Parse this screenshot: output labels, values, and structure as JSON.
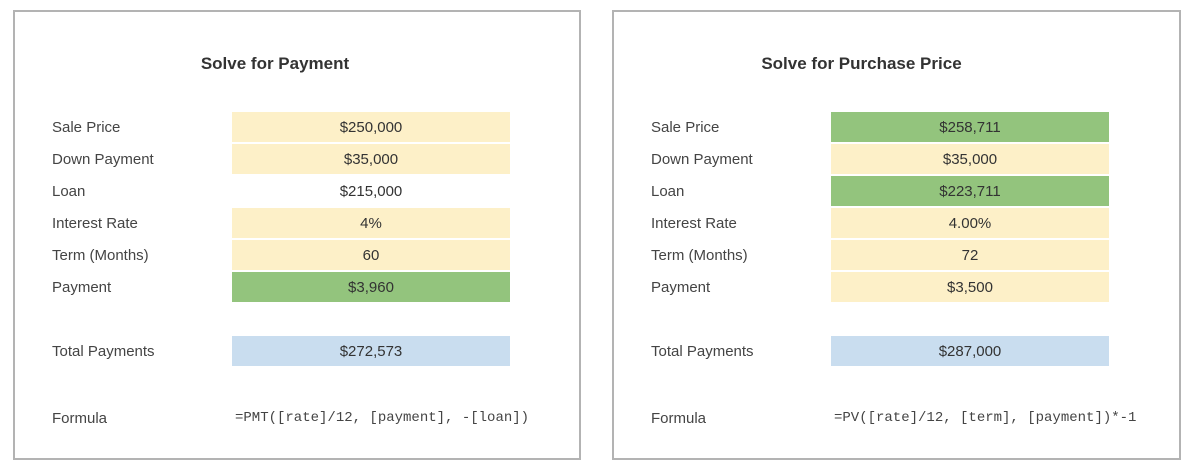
{
  "left_panel": {
    "title": "Solve for Payment",
    "rows": [
      {
        "label": "Sale Price",
        "value": "$250,000"
      },
      {
        "label": "Down Payment",
        "value": "$35,000"
      },
      {
        "label": "Loan",
        "value": "$215,000"
      },
      {
        "label": "Interest Rate",
        "value": "4%"
      },
      {
        "label": "Term (Months)",
        "value": "60"
      },
      {
        "label": "Payment",
        "value": "$3,960"
      }
    ],
    "total": {
      "label": "Total Payments",
      "value": "$272,573"
    },
    "formula": {
      "label": "Formula",
      "value": "=PMT([rate]/12, [payment], -[loan])"
    }
  },
  "right_panel": {
    "title": "Solve for Purchase Price",
    "rows": [
      {
        "label": "Sale Price",
        "value": "$258,711"
      },
      {
        "label": "Down Payment",
        "value": "$35,000"
      },
      {
        "label": "Loan",
        "value": "$223,711"
      },
      {
        "label": "Interest Rate",
        "value": "4.00%"
      },
      {
        "label": "Term (Months)",
        "value": "72"
      },
      {
        "label": "Payment",
        "value": "$3,500"
      }
    ],
    "total": {
      "label": "Total Payments",
      "value": "$287,000"
    },
    "formula": {
      "label": "Formula",
      "value": "=PV([rate]/12, [term], [payment])*-1"
    }
  },
  "colors": {
    "input_fill": "#fdf0c8",
    "result_fill": "#93c47d",
    "total_fill": "#c9ddef",
    "border": "#b3b3b3"
  }
}
